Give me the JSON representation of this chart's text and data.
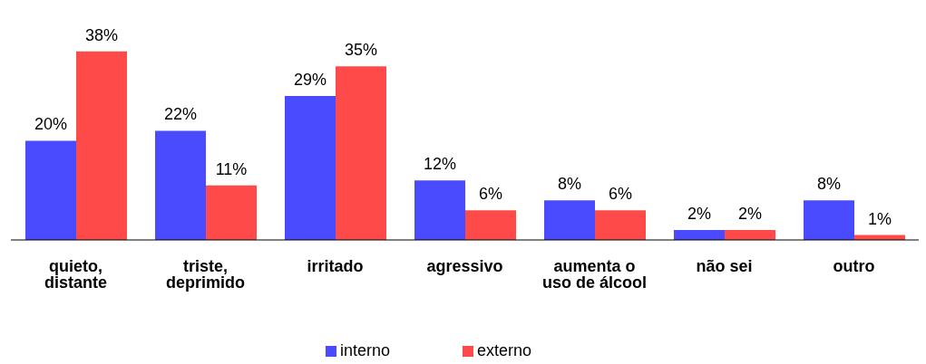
{
  "chart_data": {
    "type": "bar",
    "categories": [
      "quieto, distante",
      "triste, deprimido",
      "irritado",
      "agressivo",
      "aumenta o uso de álcool",
      "não sei",
      "outro"
    ],
    "series": [
      {
        "name": "interno",
        "color": "#4a4aff",
        "values": [
          20,
          22,
          29,
          12,
          8,
          2,
          8
        ],
        "value_labels": [
          "20%",
          "22%",
          "29%",
          "12%",
          "8%",
          "2%",
          "8%"
        ]
      },
      {
        "name": "externo",
        "color": "#ff4a4a",
        "values": [
          38,
          11,
          35,
          6,
          6,
          2,
          1
        ],
        "value_labels": [
          "38%",
          "11%",
          "35%",
          "6%",
          "6%",
          "2%",
          "1%"
        ]
      }
    ],
    "legend": "bottom",
    "grid": false
  }
}
